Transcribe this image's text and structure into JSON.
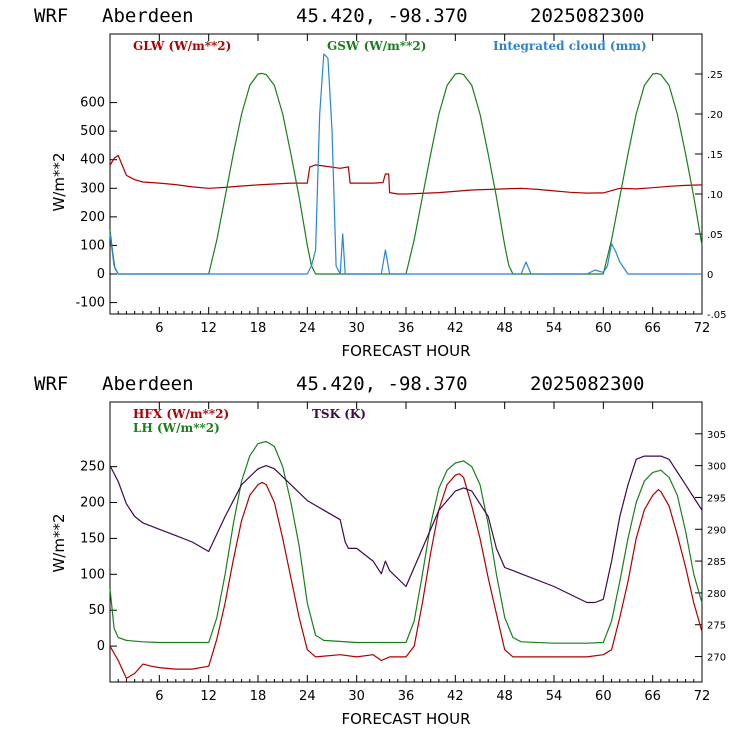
{
  "header": {
    "model": "WRF",
    "station": "Aberdeen",
    "coords": "45.420, -98.370",
    "run": "2025082300"
  },
  "colors": {
    "red": "#b00000",
    "green": "#1a7f1a",
    "blue": "#2a84d6",
    "purple": "#3d0a4f"
  },
  "chart_data": [
    {
      "type": "line",
      "xlabel": "FORECAST HOUR",
      "ylabel": "W/m**2",
      "xlim": [
        0,
        72
      ],
      "ylim": [
        -140,
        840
      ],
      "y2lim": [
        -0.05,
        0.3
      ],
      "xticks": [
        "6",
        "12",
        "18",
        "24",
        "30",
        "36",
        "42",
        "48",
        "54",
        "60",
        "66",
        "72"
      ],
      "yticks": [
        "-100",
        "0",
        "100",
        "200",
        "300",
        "400",
        "500",
        "600"
      ],
      "y2ticks": [
        "-.05",
        "0",
        ".05",
        ".10",
        ".15",
        ".20",
        ".25"
      ],
      "series": [
        {
          "name": "GLW (W/m**2)",
          "color": "#b00000",
          "axis": "left",
          "x": [
            0,
            0.5,
            1,
            1.5,
            2,
            3,
            4,
            6,
            8,
            10,
            12,
            14,
            16,
            18,
            20,
            22,
            24,
            24.3,
            25,
            26,
            28,
            29,
            29.2,
            30,
            32,
            33.2,
            33.5,
            33.9,
            34,
            35,
            36,
            40,
            44,
            48,
            50,
            52,
            54,
            56,
            58,
            60,
            62,
            64,
            66,
            68,
            70,
            72
          ],
          "y": [
            380,
            405,
            415,
            380,
            345,
            330,
            322,
            318,
            313,
            305,
            300,
            303,
            308,
            312,
            315,
            318,
            318,
            375,
            382,
            378,
            370,
            375,
            318,
            318,
            318,
            320,
            350,
            350,
            285,
            280,
            280,
            285,
            294,
            298,
            300,
            296,
            291,
            286,
            283,
            284,
            300,
            298,
            302,
            307,
            310,
            312
          ]
        },
        {
          "name": "GSW (W/m**2)",
          "color": "#1a7f1a",
          "axis": "left",
          "x": [
            0,
            0.3,
            0.6,
            1,
            12,
            13,
            14,
            15,
            16,
            17,
            18,
            18.5,
            19,
            20,
            21,
            22,
            23,
            24,
            24.5,
            25,
            36,
            37,
            38,
            39,
            40,
            41,
            42,
            42.5,
            43,
            44,
            45,
            46,
            47,
            48,
            48.5,
            49,
            60,
            61,
            62,
            63,
            64,
            65,
            66,
            66.5,
            67,
            68,
            69,
            70,
            71,
            72
          ],
          "y": [
            155,
            80,
            20,
            0,
            0,
            120,
            270,
            420,
            560,
            660,
            700,
            702,
            698,
            660,
            560,
            420,
            270,
            100,
            30,
            0,
            0,
            120,
            270,
            420,
            560,
            660,
            700,
            702,
            698,
            660,
            560,
            420,
            270,
            100,
            30,
            0,
            0,
            120,
            270,
            420,
            560,
            660,
            700,
            702,
            698,
            660,
            560,
            420,
            270,
            100
          ]
        },
        {
          "name": "Integrated cloud (mm)",
          "color": "#2a84d6",
          "axis": "right",
          "x": [
            0,
            0.5,
            1,
            24,
            24.5,
            25,
            25.5,
            26,
            26.5,
            27,
            27.5,
            28,
            28.3,
            28.6,
            29,
            33,
            33.5,
            34,
            50,
            50.6,
            51.2,
            58,
            59,
            60,
            60.5,
            61,
            61.5,
            62,
            63,
            72
          ],
          "y2": [
            0.05,
            0.01,
            0,
            0,
            0.01,
            0.03,
            0.2,
            0.275,
            0.27,
            0.18,
            0.01,
            0,
            0.05,
            0,
            0,
            0,
            0.03,
            0,
            0,
            0.015,
            0,
            0,
            0.005,
            0.002,
            0.01,
            0.038,
            0.028,
            0.015,
            0,
            0
          ]
        }
      ]
    },
    {
      "type": "line",
      "xlabel": "FORECAST HOUR",
      "ylabel": "W/m**2",
      "xlim": [
        0,
        72
      ],
      "ylim": [
        -50,
        340
      ],
      "y2lim": [
        266,
        310
      ],
      "xticks": [
        "6",
        "12",
        "18",
        "24",
        "30",
        "36",
        "42",
        "48",
        "54",
        "60",
        "66",
        "72"
      ],
      "yticks": [
        "0",
        "50",
        "100",
        "150",
        "200",
        "250"
      ],
      "y2ticks": [
        "270",
        "275",
        "280",
        "285",
        "290",
        "295",
        "300",
        "305"
      ],
      "series": [
        {
          "name": "HFX (W/m**2)",
          "color": "#b00000",
          "axis": "left",
          "x": [
            0,
            1,
            2,
            3,
            4,
            5,
            6,
            8,
            10,
            12,
            13,
            14,
            15,
            16,
            17,
            18,
            18.5,
            19,
            20,
            21,
            22,
            23,
            24,
            25,
            28,
            30,
            32,
            33,
            34,
            36,
            37,
            38,
            39,
            40,
            41,
            42,
            42.5,
            43,
            44,
            45,
            46,
            47,
            48,
            49,
            54,
            58,
            60,
            61,
            62,
            63,
            64,
            65,
            66,
            66.7,
            67,
            68,
            69,
            70,
            71,
            72
          ],
          "y": [
            0,
            -20,
            -45,
            -38,
            -25,
            -28,
            -30,
            -32,
            -32,
            -28,
            10,
            60,
            120,
            175,
            210,
            225,
            228,
            225,
            200,
            150,
            95,
            40,
            -5,
            -15,
            -12,
            -15,
            -12,
            -20,
            -15,
            -15,
            0,
            60,
            130,
            190,
            225,
            238,
            240,
            235,
            195,
            150,
            95,
            45,
            -5,
            -15,
            -15,
            -15,
            -12,
            -5,
            40,
            90,
            150,
            190,
            210,
            218,
            215,
            195,
            155,
            110,
            60,
            20
          ]
        },
        {
          "name": "LH (W/m**2)",
          "color": "#1a7f1a",
          "axis": "left",
          "x": [
            0,
            0.5,
            1,
            2,
            4,
            6,
            8,
            10,
            12,
            13,
            14,
            15,
            16,
            17,
            18,
            19,
            20,
            21,
            22,
            23,
            24,
            25,
            26,
            30,
            33,
            36,
            37,
            38,
            39,
            40,
            41,
            42,
            43,
            44,
            45,
            46,
            47,
            48,
            49,
            50,
            54,
            58,
            60,
            61,
            62,
            63,
            64,
            65,
            66,
            67,
            68,
            69,
            70,
            71,
            72
          ],
          "y": [
            80,
            25,
            12,
            8,
            6,
            5,
            5,
            5,
            5,
            40,
            100,
            170,
            230,
            265,
            282,
            285,
            278,
            250,
            200,
            140,
            60,
            15,
            8,
            5,
            5,
            5,
            35,
            100,
            170,
            220,
            245,
            255,
            258,
            250,
            225,
            170,
            100,
            40,
            12,
            6,
            4,
            4,
            5,
            35,
            90,
            150,
            200,
            230,
            242,
            245,
            235,
            210,
            160,
            100,
            60
          ]
        },
        {
          "name": "TSK (K)",
          "color": "#3d0a4f",
          "axis": "right",
          "x": [
            0,
            1,
            2,
            3,
            4,
            5,
            6,
            8,
            10,
            12,
            14,
            16,
            18,
            19,
            20,
            22,
            24,
            26,
            28,
            28.6,
            29,
            30,
            32,
            33,
            33.5,
            34,
            36,
            38,
            40,
            42,
            43,
            44,
            46,
            47,
            48,
            49,
            50,
            54,
            58,
            59,
            60,
            61,
            62,
            63,
            64,
            65,
            66,
            67,
            68,
            69,
            70,
            71,
            72
          ],
          "y2": [
            300,
            297.5,
            294,
            292,
            291,
            290.5,
            290,
            289,
            288,
            286.5,
            292,
            297,
            299.5,
            300,
            299.5,
            297,
            294.5,
            293,
            291.5,
            288,
            287,
            287,
            285,
            283,
            285,
            283.5,
            281,
            287,
            293,
            296,
            296.5,
            296,
            292,
            287,
            284,
            283.5,
            283,
            281,
            278.5,
            278.5,
            279,
            285,
            292,
            297,
            301,
            301.5,
            301.5,
            301.5,
            301,
            299,
            297,
            295,
            293
          ]
        }
      ]
    }
  ]
}
